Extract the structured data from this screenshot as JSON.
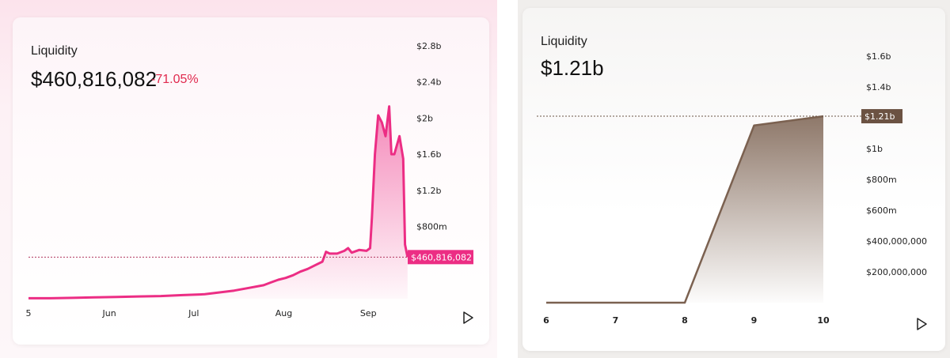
{
  "chart_data": [
    {
      "type": "area",
      "title": "Liquidity",
      "value_label": "$460,816,082",
      "change_label": "-71.05%",
      "current_value_label": "$460,816,082",
      "current_value": 460816082,
      "x_ticks": [
        {
          "label": "5",
          "x": 0
        },
        {
          "label": "Jun",
          "x": 0.22
        },
        {
          "label": "Jul",
          "x": 0.45
        },
        {
          "label": "Aug",
          "x": 0.695
        },
        {
          "label": "Sep",
          "x": 0.925
        }
      ],
      "y_ticks": [
        {
          "label": "$800m",
          "v": 800000000
        },
        {
          "label": "$1.2b",
          "v": 1200000000
        },
        {
          "label": "$1.6b",
          "v": 1600000000
        },
        {
          "label": "$2b",
          "v": 2000000000
        },
        {
          "label": "$2.4b",
          "v": 2400000000
        },
        {
          "label": "$2.8b",
          "v": 2800000000
        }
      ],
      "ylim": [
        0,
        2800000000
      ],
      "xlim": [
        0,
        1
      ],
      "points": [
        [
          0.0,
          5000000
        ],
        [
          0.06,
          5000000
        ],
        [
          0.12,
          10000000
        ],
        [
          0.18,
          15000000
        ],
        [
          0.24,
          20000000
        ],
        [
          0.3,
          25000000
        ],
        [
          0.36,
          30000000
        ],
        [
          0.42,
          40000000
        ],
        [
          0.48,
          50000000
        ],
        [
          0.52,
          70000000
        ],
        [
          0.56,
          90000000
        ],
        [
          0.6,
          120000000
        ],
        [
          0.64,
          150000000
        ],
        [
          0.66,
          180000000
        ],
        [
          0.68,
          210000000
        ],
        [
          0.7,
          230000000
        ],
        [
          0.72,
          260000000
        ],
        [
          0.74,
          300000000
        ],
        [
          0.76,
          330000000
        ],
        [
          0.78,
          370000000
        ],
        [
          0.8,
          410000000
        ],
        [
          0.81,
          520000000
        ],
        [
          0.82,
          500000000
        ],
        [
          0.84,
          500000000
        ],
        [
          0.86,
          530000000
        ],
        [
          0.87,
          560000000
        ],
        [
          0.88,
          510000000
        ],
        [
          0.9,
          540000000
        ],
        [
          0.92,
          530000000
        ],
        [
          0.93,
          560000000
        ],
        [
          0.935,
          900000000
        ],
        [
          0.943,
          1600000000
        ],
        [
          0.952,
          2030000000
        ],
        [
          0.962,
          1950000000
        ],
        [
          0.972,
          1800000000
        ],
        [
          0.982,
          2130000000
        ],
        [
          0.988,
          1600000000
        ],
        [
          0.996,
          1600000000
        ],
        [
          1.01,
          1800000000
        ],
        [
          1.02,
          1550000000
        ],
        [
          1.025,
          600000000
        ],
        [
          1.032,
          460816082
        ]
      ],
      "line_color": "#ec2d84"
    },
    {
      "type": "area",
      "title": "Liquidity",
      "value_label": "$1.21b",
      "current_value_label": "$1.21b",
      "current_value": 1210000000,
      "x_ticks": [
        {
          "label": "6",
          "x": 6
        },
        {
          "label": "7",
          "x": 7
        },
        {
          "label": "8",
          "x": 8
        },
        {
          "label": "9",
          "x": 9
        },
        {
          "label": "10",
          "x": 10
        }
      ],
      "y_ticks": [
        {
          "label": "$200,000,000",
          "v": 200000000
        },
        {
          "label": "$400,000,000",
          "v": 400000000
        },
        {
          "label": "$600m",
          "v": 600000000
        },
        {
          "label": "$800m",
          "v": 800000000
        },
        {
          "label": "$1b",
          "v": 1000000000
        },
        {
          "label": "$1.4b",
          "v": 1400000000
        },
        {
          "label": "$1.6b",
          "v": 1600000000
        }
      ],
      "ylim": [
        0,
        1600000000
      ],
      "xlim": [
        6,
        10
      ],
      "points": [
        [
          6,
          0
        ],
        [
          8,
          0
        ],
        [
          9,
          1150000000
        ],
        [
          10,
          1210000000
        ]
      ],
      "line_color": "#7b6150"
    }
  ]
}
